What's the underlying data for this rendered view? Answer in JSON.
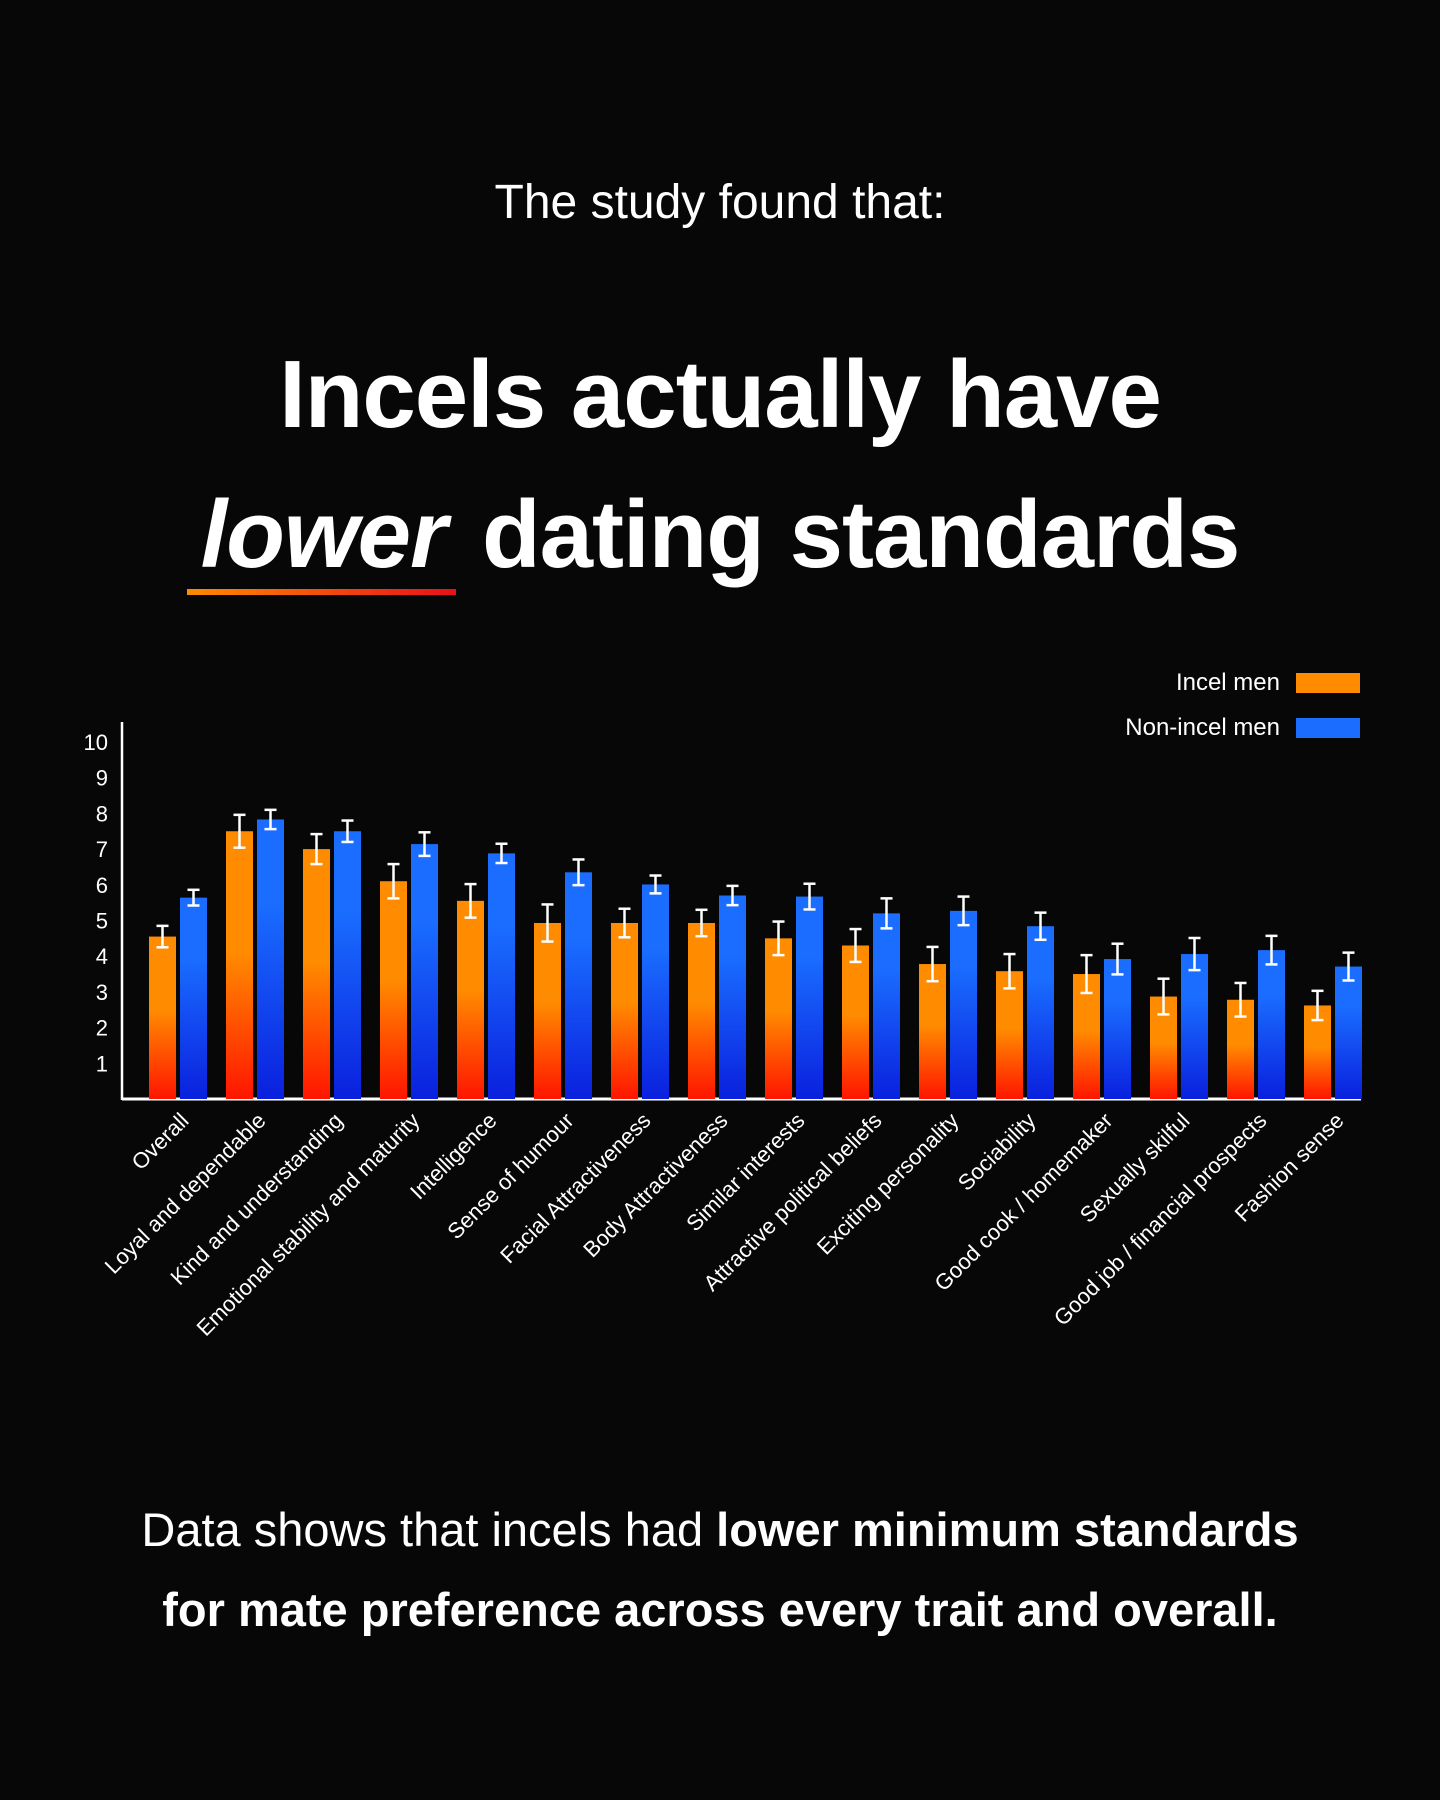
{
  "intro": "The study found that:",
  "headline": {
    "line1": "Incels actually have",
    "emphasis": "lower",
    "rest": "dating standards"
  },
  "legend": [
    {
      "label": "Incel men",
      "color": "#ff8c00"
    },
    {
      "label": "Non-incel men",
      "color": "#1a6dff"
    }
  ],
  "bottom": {
    "p1": "Data shows that incels had ",
    "bold1": "lower minimum standards",
    "bold2": "for mate preference across every trait and overall."
  },
  "chart_data": {
    "type": "bar",
    "title": "",
    "xlabel": "",
    "ylabel": "",
    "ylim": [
      0,
      10
    ],
    "yticks": [
      "1",
      "2",
      "3",
      "4",
      "5",
      "6",
      "7",
      "8",
      "9",
      "10"
    ],
    "legend_position": "top-right",
    "categories": [
      "Overall",
      "Loyal and dependable",
      "Kind and understanding",
      "Emotional stability and maturity",
      "Intelligence",
      "Sense of humour",
      "Facial Attractiveness",
      "Body Attractiveness",
      "Similar interests",
      "Attractive political beliefs",
      "Exciting personality",
      "Sociability",
      "Good cook / homemaker",
      "Sexually skilful",
      "Good job / financial prospects",
      "Fashion sense"
    ],
    "series": [
      {
        "name": "Incel men",
        "color_top": "#ff8c00",
        "color_bottom": "#ff1a00",
        "values": [
          4.55,
          7.5,
          7.0,
          6.1,
          5.55,
          4.93,
          4.93,
          4.93,
          4.5,
          4.3,
          3.78,
          3.58,
          3.5,
          2.87,
          2.78,
          2.62
        ],
        "errors": [
          0.3,
          0.46,
          0.42,
          0.48,
          0.47,
          0.52,
          0.4,
          0.37,
          0.47,
          0.46,
          0.48,
          0.48,
          0.53,
          0.5,
          0.47,
          0.41
        ]
      },
      {
        "name": "Non-incel men",
        "color_top": "#1a6dff",
        "color_bottom": "#0a22e0",
        "values": [
          5.64,
          7.83,
          7.5,
          7.14,
          6.88,
          6.35,
          6.01,
          5.7,
          5.67,
          5.2,
          5.27,
          4.84,
          3.92,
          4.06,
          4.17,
          3.71
        ],
        "errors": [
          0.22,
          0.27,
          0.3,
          0.33,
          0.27,
          0.36,
          0.25,
          0.27,
          0.36,
          0.42,
          0.4,
          0.38,
          0.43,
          0.45,
          0.4,
          0.39
        ]
      }
    ]
  }
}
